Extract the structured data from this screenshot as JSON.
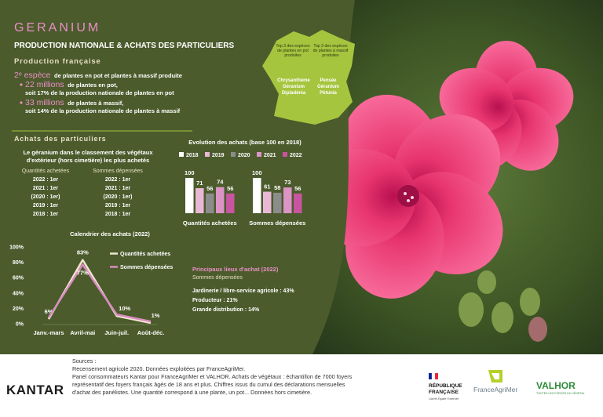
{
  "header": {
    "title": "GERANIUM",
    "subtitle": "PRODUCTION NATIONALE & ACHATS DES PARTICULIERS"
  },
  "production": {
    "heading": "Production française",
    "rank": "2ᵉ espèce",
    "rank_text": "de plantes en pot et plantes à massif produite",
    "items": [
      {
        "amount": "22 millions",
        "text": "de plantes en pot,",
        "share": "soit 17% de la production nationale de plantes en pot"
      },
      {
        "amount": "33 millions",
        "text": "de plantes à massif,",
        "share": "soit 14% de la production nationale de plantes à massif"
      }
    ],
    "top3": {
      "pot": {
        "heading": "Top 3 des espèces de plantes en pot produites",
        "species": [
          "Chrysanthème",
          "Géranium",
          "Dipladénia"
        ]
      },
      "massif": {
        "heading": "Top 3 des espèces de plantes à massif produites",
        "species": [
          "Pensée",
          "Géranium",
          "Pétunia"
        ]
      }
    }
  },
  "achats": {
    "heading": "Achats des particuliers",
    "ranking_title": [
      "Le géranium dans le classement des végétaux",
      "d'extérieur (hors cimetière) les plus achetés"
    ],
    "quantites": {
      "heading": "Quantités achetées",
      "ranks": [
        "2022 : 1er",
        "2021 : 1er",
        "(2020 : 1er)",
        "2019 : 1er",
        "2018 : 1er"
      ]
    },
    "sommes": {
      "heading": "Sommes dépensées",
      "ranks": [
        "2022 : 1er",
        "2021 : 1er",
        "(2020 : 1er)",
        "2019 : 1er",
        "2018 : 1er"
      ]
    }
  },
  "chart_data": [
    {
      "type": "bar",
      "title": "Evolution des achats (base 100 en 2018)",
      "categories": [
        "Quantités achetées",
        "Sommes dépensées"
      ],
      "series": [
        {
          "name": "2018",
          "color": "#ffffff",
          "values": [
            100,
            100
          ]
        },
        {
          "name": "2019",
          "color": "#e9b8d6",
          "values": [
            71,
            61
          ]
        },
        {
          "name": "2020",
          "color": "#8c8c8c",
          "values": [
            56,
            58
          ]
        },
        {
          "name": "2021",
          "color": "#dc94c6",
          "values": [
            74,
            73
          ]
        },
        {
          "name": "2022",
          "color": "#c8559f",
          "values": [
            56,
            56
          ]
        }
      ]
    },
    {
      "type": "line",
      "title": "Calendrier des achats (2022)",
      "categories": [
        "Janv.-mars",
        "Avril-mai",
        "Juin-juil.",
        "Août-déc."
      ],
      "series": [
        {
          "name": "Quantités achetées",
          "color": "#efe6cf",
          "values": [
            6,
            83,
            10,
            1
          ],
          "value_labels": [
            "6%",
            "83%",
            "10%",
            "1%"
          ]
        },
        {
          "name": "Sommes dépensées",
          "color": "#d98cbf",
          "values": [
            8,
            77,
            12,
            3
          ],
          "value_labels": [
            null,
            "77%",
            null,
            null
          ]
        }
      ],
      "ylim": [
        0,
        100
      ],
      "yticks": [
        {
          "value": 0,
          "label": "0%"
        },
        {
          "value": 20,
          "label": "20%"
        },
        {
          "value": 40,
          "label": "40%"
        },
        {
          "value": 60,
          "label": "60%"
        },
        {
          "value": 80,
          "label": "80%"
        },
        {
          "value": 100,
          "label": "100%"
        }
      ]
    }
  ],
  "lieux": {
    "title": "Principaux lieux d'achat (2022)",
    "subtitle": "Sommes dépensées",
    "items": [
      "Jardinerie / libre-service agricole : 43%",
      "Producteur : 21%",
      "Grande distribution : 14%"
    ]
  },
  "footer": {
    "sources_label": "Sources :",
    "sources": [
      "Recensement agricole 2020. Données exploitées par FranceAgriMer.",
      "Panel consommateurs Kantar pour FranceAgriMer et VALHOR. Achats de végétaux : échantillon de 7000 foyers",
      "représentatif des foyers français âgés de 18 ans et plus. Chiffres issus du cumul des déclarations mensuelles",
      "d'achat des panélistes. Une quantité correspond à une plante, un pot... Données hors cimetière."
    ],
    "logos": {
      "kantar": "KANTAR",
      "republique": [
        "RÉPUBLIQUE",
        "FRANÇAISE"
      ],
      "devise": "Liberté Égalité Fraternité",
      "franceagrimer": "FranceAgriMer",
      "valhor": "VALHOR",
      "valhor_tagline": "TOUTES LES FORCES DU VÉGÉTAL"
    }
  }
}
